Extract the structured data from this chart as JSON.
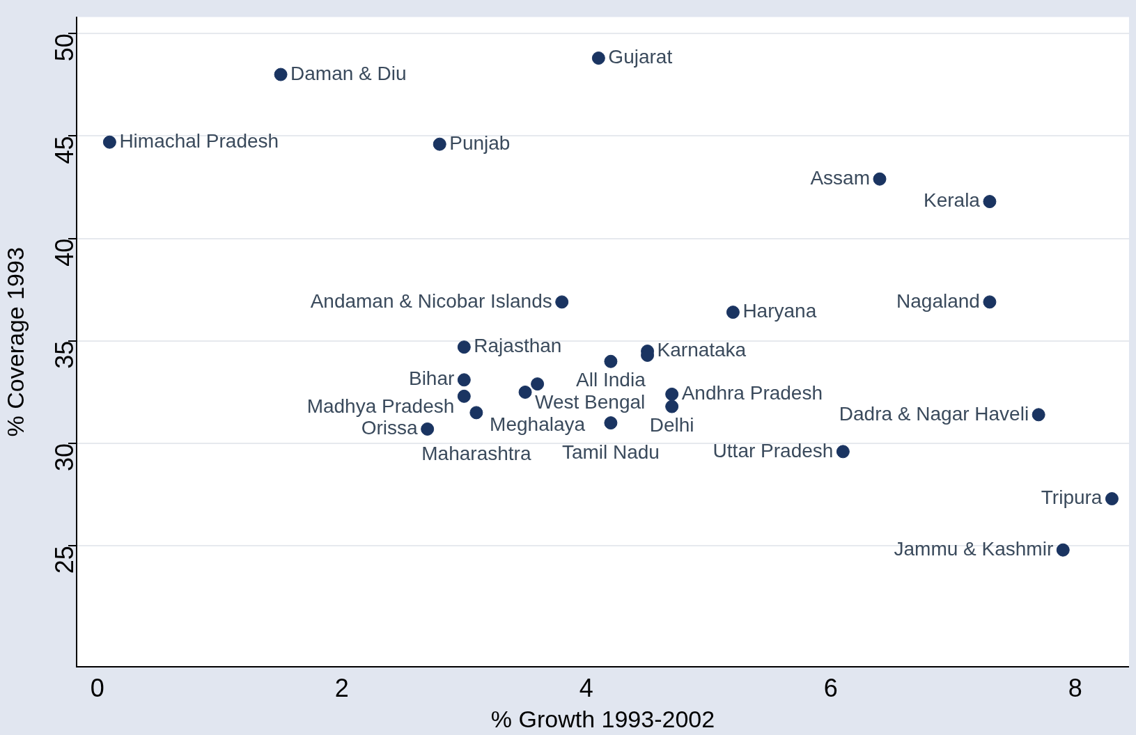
{
  "chart_data": {
    "type": "scatter",
    "xlabel": "% Growth 1993-2002",
    "ylabel": "% Coverage 1993",
    "x": [
      0.1,
      1.5,
      4.1,
      2.8,
      6.4,
      7.3,
      3.8,
      5.2,
      7.3,
      3.0,
      4.5,
      4.5,
      4.2,
      3.0,
      3.0,
      3.5,
      3.6,
      3.1,
      2.7,
      4.7,
      4.7,
      4.2,
      7.7,
      6.1,
      8.3,
      7.9
    ],
    "values": [
      44.7,
      48.0,
      48.8,
      44.6,
      42.9,
      41.8,
      36.9,
      36.4,
      36.9,
      34.7,
      34.5,
      34.3,
      34.0,
      33.1,
      32.3,
      32.5,
      32.9,
      31.5,
      30.7,
      32.4,
      31.8,
      31.0,
      31.4,
      29.6,
      27.3,
      24.8
    ],
    "color": "#1a3461",
    "marker": "circle",
    "grid": "y",
    "xlim": [
      -0.17,
      8.44
    ],
    "ylim": [
      19.1,
      50.8
    ],
    "xticks": [
      0,
      2,
      4,
      6,
      8
    ],
    "yticks": [
      25,
      30,
      35,
      40,
      45,
      50
    ],
    "annotations": [
      {
        "text": "Himachal Pradesh",
        "x": 0.1,
        "y": 44.7
      },
      {
        "text": "Daman & Diu",
        "x": 1.5,
        "y": 48.0
      },
      {
        "text": "Gujarat",
        "x": 4.1,
        "y": 48.8
      },
      {
        "text": "Punjab",
        "x": 2.8,
        "y": 44.6
      },
      {
        "text": "Assam",
        "x": 6.4,
        "y": 42.9
      },
      {
        "text": "Kerala",
        "x": 7.3,
        "y": 41.8
      },
      {
        "text": "Andaman & Nicobar Islands",
        "x": 3.8,
        "y": 36.9
      },
      {
        "text": "Haryana",
        "x": 5.2,
        "y": 36.4
      },
      {
        "text": "Nagaland",
        "x": 7.3,
        "y": 36.9
      },
      {
        "text": "Rajasthan",
        "x": 3.0,
        "y": 34.7
      },
      {
        "text": "Karnataka",
        "x": 4.5,
        "y": 34.5
      },
      {
        "text": "All India",
        "x": 4.2,
        "y": 34.0
      },
      {
        "text": "Bihar",
        "x": 3.0,
        "y": 33.1
      },
      {
        "text": "Madhya Pradesh",
        "x": 3.0,
        "y": 32.3
      },
      {
        "text": "West Bengal",
        "x": 3.5,
        "y": 32.5
      },
      {
        "text": "Meghalaya",
        "x": 3.6,
        "y": 32.9
      },
      {
        "text": "Maharashtra",
        "x": 3.1,
        "y": 31.5
      },
      {
        "text": "Orissa",
        "x": 2.7,
        "y": 30.7
      },
      {
        "text": "Andhra Pradesh",
        "x": 4.7,
        "y": 32.4
      },
      {
        "text": "Delhi",
        "x": 4.7,
        "y": 31.8
      },
      {
        "text": "Tamil Nadu",
        "x": 4.2,
        "y": 31.0
      },
      {
        "text": "Dadra & Nagar Haveli",
        "x": 7.7,
        "y": 31.4
      },
      {
        "text": "Uttar Pradesh",
        "x": 6.1,
        "y": 29.6
      },
      {
        "text": "Tripura",
        "x": 8.3,
        "y": 27.3
      },
      {
        "text": "Jammu & Kashmir",
        "x": 7.9,
        "y": 24.8
      }
    ]
  }
}
